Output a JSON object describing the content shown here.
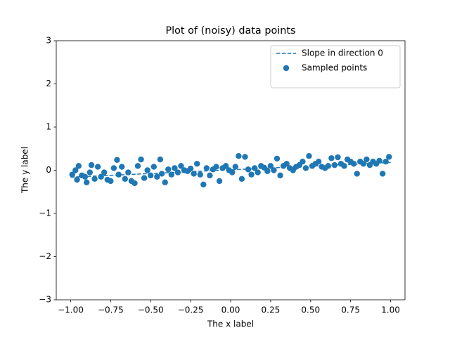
{
  "chart_data": {
    "type": "scatter",
    "title": "Plot of (noisy) data points",
    "x_label": "The x label",
    "y_label": "The y label",
    "xlim": [
      -1.09,
      1.09
    ],
    "ylim": [
      -3,
      3
    ],
    "xticks": [
      {
        "value": -1,
        "label": "−1.00"
      },
      {
        "value": -0.75,
        "label": "−0.75"
      },
      {
        "value": -0.5,
        "label": "−0.50"
      },
      {
        "value": -0.25,
        "label": "−0.25"
      },
      {
        "value": 0,
        "label": "0.00"
      },
      {
        "value": 0.25,
        "label": "0.25"
      },
      {
        "value": 0.5,
        "label": "0.50"
      },
      {
        "value": 0.75,
        "label": "0.75"
      },
      {
        "value": 1,
        "label": "1.00"
      }
    ],
    "yticks": [
      {
        "value": -3,
        "label": "−3"
      },
      {
        "value": -2,
        "label": "−2"
      },
      {
        "value": -1,
        "label": "−1"
      },
      0,
      1,
      2,
      3
    ],
    "legend": "upper right",
    "series": [
      {
        "name": "Slope in direction 0",
        "kind": "line",
        "style": "dashed",
        "color": "#1f77b4",
        "x": [
          -1,
          1
        ],
        "y": [
          -0.16,
          0.18
        ]
      },
      {
        "name": "Sampled points",
        "kind": "scatter",
        "color": "#1f77b4",
        "x": [
          -0.99,
          -0.97,
          -0.96,
          -0.95,
          -0.93,
          -0.91,
          -0.9,
          -0.88,
          -0.87,
          -0.85,
          -0.83,
          -0.81,
          -0.79,
          -0.77,
          -0.75,
          -0.73,
          -0.71,
          -0.7,
          -0.68,
          -0.66,
          -0.64,
          -0.62,
          -0.6,
          -0.58,
          -0.56,
          -0.54,
          -0.52,
          -0.5,
          -0.48,
          -0.46,
          -0.44,
          -0.43,
          -0.41,
          -0.39,
          -0.37,
          -0.35,
          -0.33,
          -0.31,
          -0.29,
          -0.27,
          -0.25,
          -0.23,
          -0.21,
          -0.19,
          -0.17,
          -0.15,
          -0.13,
          -0.11,
          -0.09,
          -0.07,
          -0.05,
          -0.03,
          -0.01,
          0.01,
          0.03,
          0.05,
          0.07,
          0.09,
          0.11,
          0.13,
          0.15,
          0.17,
          0.19,
          0.21,
          0.23,
          0.25,
          0.27,
          0.29,
          0.31,
          0.33,
          0.35,
          0.37,
          0.39,
          0.41,
          0.43,
          0.45,
          0.47,
          0.49,
          0.51,
          0.53,
          0.55,
          0.57,
          0.59,
          0.61,
          0.63,
          0.65,
          0.67,
          0.69,
          0.71,
          0.73,
          0.75,
          0.77,
          0.79,
          0.81,
          0.83,
          0.85,
          0.87,
          0.89,
          0.91,
          0.93,
          0.95,
          0.97,
          0.99
        ],
        "y": [
          -0.1,
          0.0,
          -0.22,
          0.1,
          -0.12,
          -0.15,
          -0.28,
          -0.05,
          0.12,
          -0.2,
          0.08,
          -0.15,
          -0.05,
          -0.22,
          -0.25,
          0.05,
          0.24,
          -0.1,
          0.08,
          -0.2,
          -0.05,
          -0.25,
          -0.3,
          0.1,
          0.25,
          -0.18,
          0.0,
          -0.12,
          0.08,
          -0.15,
          0.25,
          -0.08,
          -0.28,
          0.02,
          -0.1,
          0.05,
          -0.05,
          0.1,
          0.0,
          -0.02,
          0.04,
          -0.08,
          0.15,
          -0.1,
          -0.33,
          0.05,
          -0.12,
          0.02,
          0.08,
          -0.25,
          0.05,
          0.1,
          0.0,
          -0.05,
          0.08,
          0.33,
          -0.2,
          0.31,
          0.02,
          -0.1,
          0.05,
          -0.05,
          0.1,
          0.06,
          -0.02,
          0.1,
          0.0,
          0.27,
          -0.12,
          0.1,
          0.15,
          0.05,
          0.0,
          0.08,
          0.12,
          0.2,
          0.05,
          0.33,
          0.1,
          0.15,
          0.2,
          0.08,
          0.05,
          0.1,
          0.28,
          0.12,
          0.3,
          0.15,
          0.1,
          0.25,
          0.2,
          0.15,
          -0.08,
          0.2,
          0.15,
          0.25,
          0.12,
          0.2,
          0.15,
          0.22,
          -0.08,
          0.2,
          0.31
        ]
      }
    ]
  }
}
